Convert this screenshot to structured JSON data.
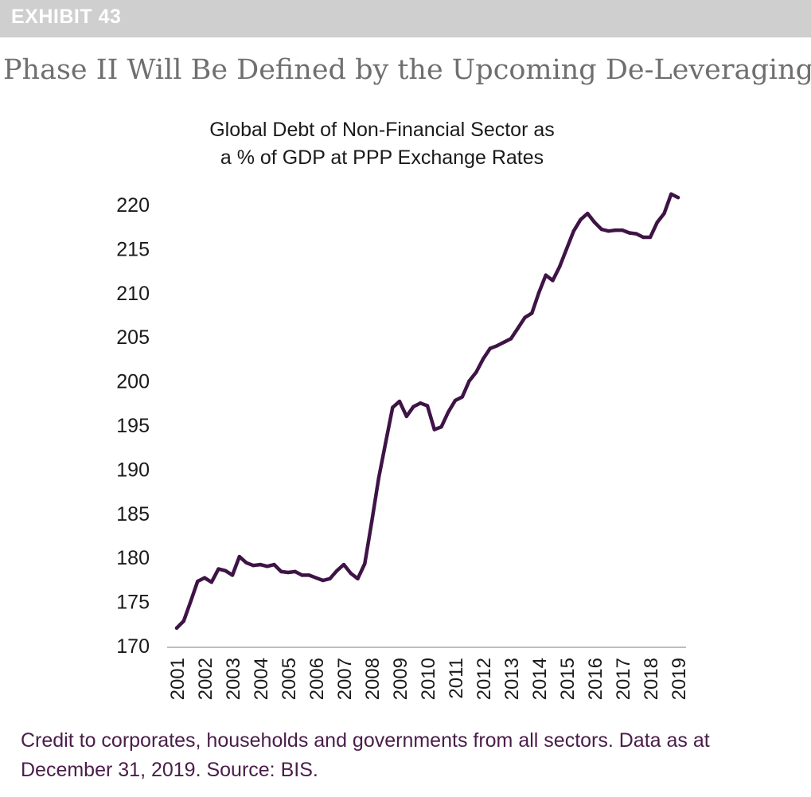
{
  "exhibit": {
    "label": "EXHIBIT 43"
  },
  "title": "Phase II Will Be Defined by the Upcoming De-Leveraging",
  "caption": "Credit to corporates, households and governments from all sectors. Data as at December 31, 2019. Source: BIS.",
  "colors": {
    "line": "#3e1446",
    "exhibit_bar": "#cfcfcf",
    "caption": "#4a1d4a",
    "title": "#6f6f6f"
  },
  "chart_data": {
    "type": "line",
    "title_lines": [
      "Global Debt of Non-Financial Sector as",
      "a % of GDP at PPP Exchange Rates"
    ],
    "xlabel": "",
    "ylabel": "",
    "ylim": [
      170,
      222
    ],
    "y_ticks": [
      170,
      175,
      180,
      185,
      190,
      195,
      200,
      205,
      210,
      215,
      220
    ],
    "x_tick_labels": [
      "2001",
      "2002",
      "2003",
      "2004",
      "2005",
      "2006",
      "2007",
      "2008",
      "2009",
      "2010",
      "2011",
      "2012",
      "2013",
      "2014",
      "2015",
      "2016",
      "2017",
      "2018",
      "2019"
    ],
    "grid": false,
    "legend": "none",
    "series": [
      {
        "name": "Global Debt of Non-Financial Sector (% of GDP at PPP)",
        "x": [
          2001.0,
          2001.25,
          2001.5,
          2001.75,
          2002.0,
          2002.25,
          2002.5,
          2002.75,
          2003.0,
          2003.25,
          2003.5,
          2003.75,
          2004.0,
          2004.25,
          2004.5,
          2004.75,
          2005.0,
          2005.25,
          2005.5,
          2005.75,
          2006.0,
          2006.25,
          2006.5,
          2006.75,
          2007.0,
          2007.25,
          2007.5,
          2007.75,
          2008.0,
          2008.25,
          2008.5,
          2008.75,
          2009.0,
          2009.25,
          2009.5,
          2009.75,
          2010.0,
          2010.25,
          2010.5,
          2010.75,
          2011.0,
          2011.25,
          2011.5,
          2011.75,
          2012.0,
          2012.25,
          2012.5,
          2012.75,
          2013.0,
          2013.25,
          2013.5,
          2013.75,
          2014.0,
          2014.25,
          2014.5,
          2014.75,
          2015.0,
          2015.25,
          2015.5,
          2015.75,
          2016.0,
          2016.25,
          2016.5,
          2016.75,
          2017.0,
          2017.25,
          2017.5,
          2017.75,
          2018.0,
          2018.25,
          2018.5,
          2018.75,
          2019.0
        ],
        "values": [
          172.0,
          172.8,
          175.0,
          177.3,
          177.7,
          177.2,
          178.7,
          178.5,
          178.0,
          180.1,
          179.4,
          179.1,
          179.2,
          179.0,
          179.2,
          178.4,
          178.3,
          178.4,
          178.0,
          178.0,
          177.7,
          177.4,
          177.6,
          178.5,
          179.2,
          178.2,
          177.6,
          179.3,
          184.0,
          189.0,
          193.0,
          197.0,
          197.7,
          196.0,
          197.1,
          197.5,
          197.2,
          194.5,
          194.8,
          196.5,
          197.8,
          198.2,
          200.0,
          201.0,
          202.5,
          203.7,
          204.0,
          204.4,
          204.8,
          206.0,
          207.2,
          207.7,
          210.0,
          212.0,
          211.4,
          213.0,
          215.0,
          217.0,
          218.3,
          219.0,
          218.0,
          217.2,
          217.0,
          217.1,
          217.1,
          216.8,
          216.7,
          216.3,
          216.3,
          218.0,
          219.0,
          221.2,
          220.8
        ]
      }
    ]
  }
}
